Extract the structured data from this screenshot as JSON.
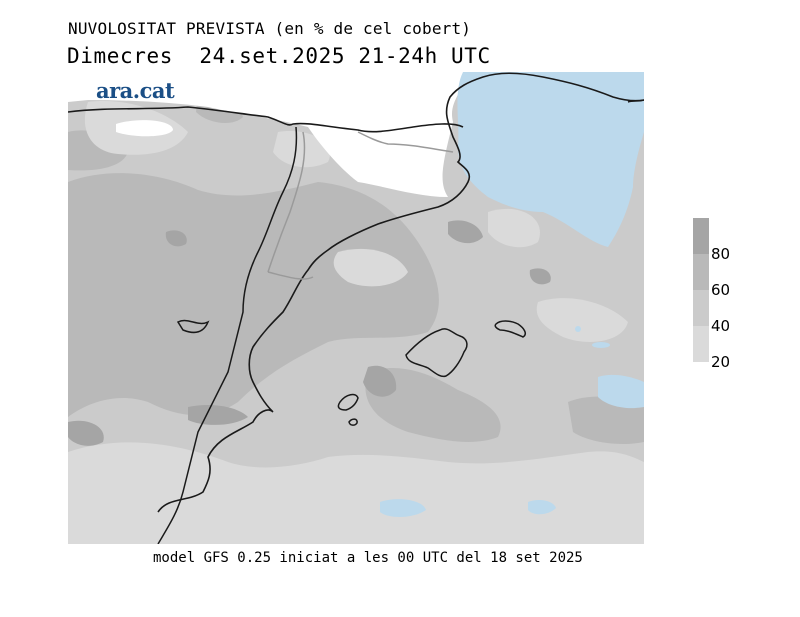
{
  "header": {
    "title": "NUVOLOSITAT PREVISTA (en % de cel cobert)",
    "subtitle": "Dimecres  24.set.2025 21-24h UTC"
  },
  "logo": {
    "text": "ara.cat",
    "color": "#1b4f86"
  },
  "footer": {
    "text": "model GFS 0.25 iniciat a les 00 UTC del 18 set 2025"
  },
  "legend": {
    "labels": [
      "80",
      "60",
      "40",
      "20"
    ],
    "colors": [
      "#a5a5a5",
      "#b9b9b9",
      "#cbcbcb",
      "#dadada"
    ]
  },
  "map_colors": {
    "clear": "#ffffff",
    "cover_20_40": "#dadada",
    "cover_40_60": "#cbcbcb",
    "cover_60_80": "#b9b9b9",
    "cover_80_plus": "#a5a5a5",
    "no_cloud_sea": "#bcd9ec",
    "coastline": "#1a1a1a",
    "border": "#9a9a9a"
  }
}
